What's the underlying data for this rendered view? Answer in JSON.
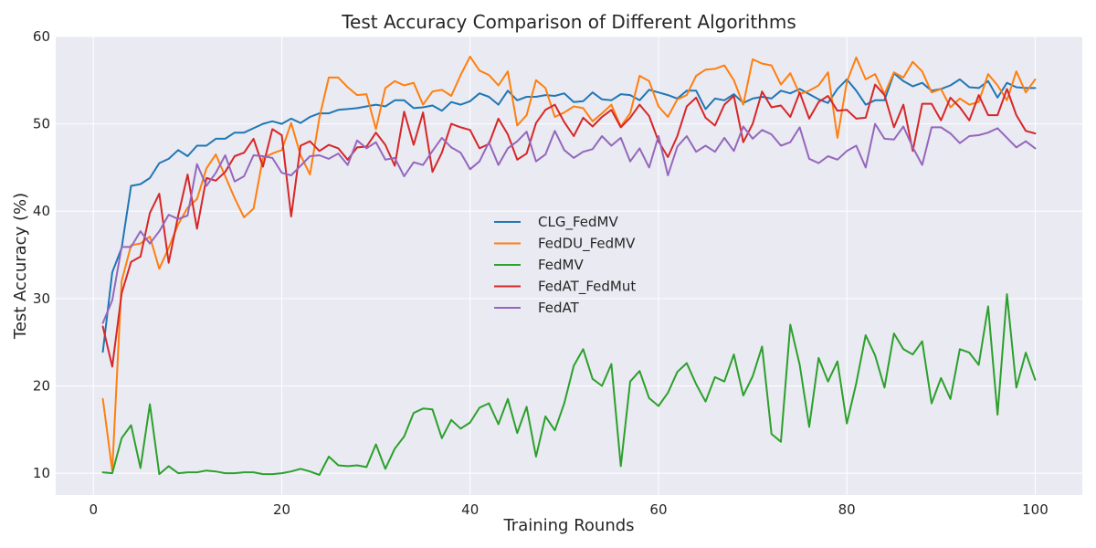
{
  "chart_data": {
    "type": "line",
    "title": "Test Accuracy Comparison of Different Algorithms",
    "xlabel": "Training Rounds",
    "ylabel": "Test Accuracy (%)",
    "xlim": [
      -4,
      105
    ],
    "ylim": [
      7.5,
      60
    ],
    "xticks": [
      "0",
      "20",
      "40",
      "60",
      "80",
      "100"
    ],
    "yticks": [
      "10",
      "20",
      "30",
      "40",
      "50",
      "60"
    ],
    "grid": true,
    "legend_position": "center",
    "x_start": 1,
    "series": [
      {
        "name": "CLG_FedMV",
        "color": "#1f77b4",
        "values": [
          23.9,
          33.0,
          35.8,
          42.9,
          43.1,
          43.8,
          45.5,
          46.0,
          47.0,
          46.3,
          47.5,
          47.5,
          48.3,
          48.3,
          49.0,
          49.0,
          49.5,
          50.0,
          50.3,
          50.0,
          50.6,
          50.1,
          50.8,
          51.2,
          51.2,
          51.6,
          51.7,
          51.8,
          52.0,
          52.2,
          52.0,
          52.7,
          52.7,
          51.8,
          51.9,
          52.1,
          51.5,
          52.5,
          52.2,
          52.6,
          53.5,
          53.1,
          52.2,
          53.8,
          52.7,
          53.1,
          53.1,
          53.3,
          53.2,
          53.5,
          52.5,
          52.6,
          53.6,
          52.8,
          52.7,
          53.4,
          53.3,
          52.7,
          53.9,
          53.6,
          53.3,
          52.9,
          53.8,
          53.8,
          51.7,
          52.9,
          52.7,
          53.4,
          52.4,
          52.9,
          53.1,
          52.9,
          53.8,
          53.5,
          54.0,
          53.4,
          52.8,
          52.4,
          54.0,
          55.1,
          53.8,
          52.2,
          52.7,
          52.7,
          55.8,
          54.9,
          54.3,
          54.7,
          53.8,
          54.0,
          54.4,
          55.1,
          54.2,
          54.1,
          54.9,
          53.0,
          54.7,
          54.2,
          54.1,
          54.1
        ]
      },
      {
        "name": "FedDU_FedMV",
        "color": "#ff7f0e",
        "values": [
          18.5,
          10.3,
          32.0,
          36.1,
          36.3,
          37.1,
          33.4,
          35.8,
          38.5,
          40.4,
          41.4,
          44.9,
          46.5,
          44.0,
          41.5,
          39.3,
          40.3,
          46.1,
          46.6,
          47.0,
          50.1,
          46.4,
          44.2,
          50.7,
          55.3,
          55.3,
          54.2,
          53.3,
          53.4,
          49.4,
          54.1,
          54.9,
          54.4,
          54.7,
          52.2,
          53.7,
          53.9,
          53.2,
          55.6,
          57.7,
          56.1,
          55.6,
          54.4,
          56.0,
          49.8,
          51.0,
          55.0,
          54.1,
          50.8,
          51.3,
          52.0,
          51.8,
          50.3,
          51.2,
          52.2,
          49.7,
          51.2,
          55.5,
          54.9,
          52.0,
          50.8,
          52.8,
          53.3,
          55.5,
          56.2,
          56.3,
          56.7,
          55.0,
          52.2,
          57.4,
          56.9,
          56.7,
          54.5,
          55.8,
          53.4,
          53.8,
          54.4,
          55.9,
          48.4,
          54.8,
          57.6,
          55.1,
          55.7,
          53.4,
          55.9,
          55.3,
          57.1,
          56.0,
          53.6,
          54.0,
          51.9,
          52.9,
          52.2,
          52.5,
          55.7,
          54.4,
          52.7,
          56.0,
          53.6,
          55.1
        ]
      },
      {
        "name": "FedMV",
        "color": "#2ca02c",
        "values": [
          10.1,
          10.0,
          14.0,
          15.5,
          10.6,
          17.9,
          9.9,
          10.8,
          10.0,
          10.1,
          10.1,
          10.3,
          10.2,
          10.0,
          10.0,
          10.1,
          10.1,
          9.9,
          9.9,
          10.0,
          10.2,
          10.5,
          10.2,
          9.8,
          11.9,
          10.9,
          10.8,
          10.9,
          10.7,
          13.3,
          10.5,
          12.8,
          14.2,
          16.9,
          17.4,
          17.3,
          14.0,
          16.1,
          15.1,
          15.8,
          17.5,
          18.0,
          15.6,
          18.5,
          14.6,
          17.6,
          11.9,
          16.5,
          14.9,
          18.0,
          22.3,
          24.2,
          20.8,
          20.0,
          22.5,
          10.8,
          20.5,
          21.7,
          18.6,
          17.7,
          19.2,
          21.6,
          22.6,
          20.2,
          18.2,
          21.0,
          20.5,
          23.6,
          18.9,
          21.1,
          24.5,
          14.5,
          13.6,
          27.0,
          22.4,
          15.3,
          23.2,
          20.5,
          22.8,
          15.7,
          20.3,
          25.8,
          23.5,
          19.8,
          26.0,
          24.2,
          23.6,
          25.1,
          18.0,
          20.9,
          18.5,
          24.2,
          23.8,
          22.4,
          29.1,
          16.7,
          30.5,
          19.8,
          23.8,
          20.7
        ]
      },
      {
        "name": "FedAT_FedMut",
        "color": "#d62728",
        "values": [
          26.8,
          22.2,
          30.6,
          34.2,
          34.8,
          39.8,
          42.0,
          34.1,
          39.5,
          44.2,
          38.0,
          43.8,
          43.5,
          44.5,
          46.3,
          46.7,
          48.3,
          45.1,
          49.4,
          48.7,
          39.4,
          47.5,
          48.0,
          46.9,
          47.6,
          47.2,
          45.9,
          47.3,
          47.4,
          49.0,
          47.6,
          45.2,
          51.4,
          47.6,
          51.3,
          44.5,
          46.7,
          50.0,
          49.6,
          49.3,
          47.2,
          47.7,
          50.6,
          48.8,
          45.9,
          46.6,
          50.1,
          51.6,
          52.2,
          50.2,
          48.6,
          50.7,
          49.7,
          50.8,
          51.6,
          49.6,
          50.7,
          52.2,
          50.9,
          48.0,
          46.2,
          48.6,
          52.0,
          53.0,
          50.7,
          49.8,
          52.2,
          53.2,
          47.9,
          50.0,
          53.7,
          51.9,
          52.1,
          50.8,
          53.6,
          50.6,
          52.5,
          53.2,
          51.5,
          51.6,
          50.6,
          50.7,
          54.5,
          53.3,
          49.6,
          52.2,
          46.9,
          52.3,
          52.3,
          50.4,
          53.0,
          51.9,
          50.4,
          53.3,
          51.0,
          51.0,
          54.0,
          51.0,
          49.2,
          48.9
        ]
      },
      {
        "name": "FedAT",
        "color": "#9467bd",
        "values": [
          27.2,
          29.8,
          35.9,
          35.9,
          37.7,
          36.3,
          37.7,
          39.6,
          39.1,
          39.5,
          45.4,
          42.9,
          44.4,
          46.4,
          43.4,
          44.0,
          46.4,
          46.3,
          46.1,
          44.4,
          44.1,
          45.2,
          46.3,
          46.4,
          46.0,
          46.6,
          45.3,
          48.1,
          47.2,
          47.9,
          45.9,
          46.1,
          44.0,
          45.6,
          45.3,
          46.9,
          48.4,
          47.3,
          46.7,
          44.8,
          45.7,
          47.9,
          45.3,
          47.2,
          48.0,
          49.1,
          45.7,
          46.5,
          49.2,
          47.0,
          46.1,
          46.8,
          47.1,
          48.6,
          47.5,
          48.4,
          45.7,
          47.2,
          45.0,
          48.6,
          44.1,
          47.4,
          48.6,
          46.8,
          47.5,
          46.8,
          48.4,
          46.9,
          49.7,
          48.3,
          49.3,
          48.8,
          47.5,
          47.9,
          49.6,
          46.0,
          45.5,
          46.3,
          45.9,
          46.9,
          47.5,
          45.0,
          50.0,
          48.3,
          48.2,
          49.7,
          47.3,
          45.3,
          49.6,
          49.6,
          48.9,
          47.8,
          48.6,
          48.7,
          49.0,
          49.5,
          48.4,
          47.3,
          48.0,
          47.2
        ]
      }
    ]
  }
}
